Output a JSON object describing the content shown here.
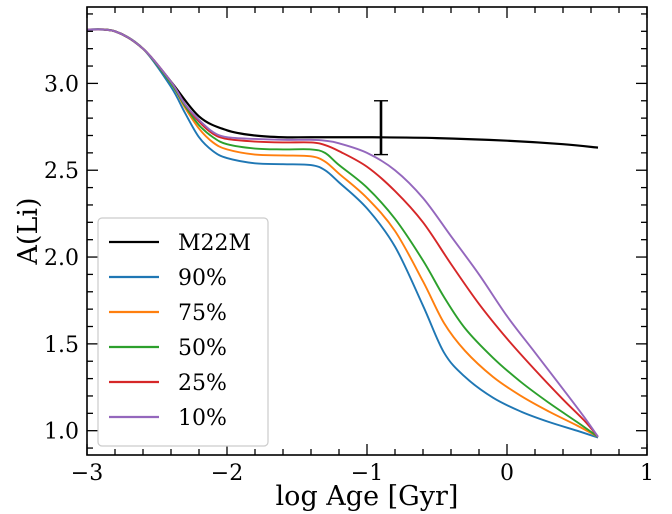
{
  "chart_data": {
    "type": "line",
    "xlabel": "log Age [Gyr]",
    "ylabel": "A(Li)",
    "xlim": [
      -3,
      1
    ],
    "ylim": [
      0.86,
      3.44
    ],
    "xticks": [
      -3,
      -2,
      -1,
      0,
      1
    ],
    "xtick_labels": [
      "−3",
      "−2",
      "−1",
      "0",
      "1"
    ],
    "yticks": [
      1.0,
      1.5,
      2.0,
      2.5,
      3.0
    ],
    "ytick_labels": [
      "1.0",
      "1.5",
      "2.0",
      "2.5",
      "3.0"
    ],
    "legend_position": "lower-left",
    "grid": false,
    "series": [
      {
        "name": "M22M",
        "color": "#000000",
        "points": [
          [
            -3.0,
            3.31
          ],
          [
            -2.8,
            3.3
          ],
          [
            -2.6,
            3.2
          ],
          [
            -2.4,
            3.01
          ],
          [
            -2.2,
            2.81
          ],
          [
            -2.0,
            2.73
          ],
          [
            -1.8,
            2.7
          ],
          [
            -1.6,
            2.69
          ],
          [
            -1.4,
            2.69
          ],
          [
            -1.0,
            2.69
          ],
          [
            -0.5,
            2.685
          ],
          [
            0.0,
            2.67
          ],
          [
            0.4,
            2.65
          ],
          [
            0.65,
            2.63
          ]
        ]
      },
      {
        "name": "90%",
        "color": "#1f77b4",
        "points": [
          [
            -3.0,
            3.31
          ],
          [
            -2.8,
            3.3
          ],
          [
            -2.6,
            3.2
          ],
          [
            -2.4,
            2.98
          ],
          [
            -2.3,
            2.83
          ],
          [
            -2.2,
            2.69
          ],
          [
            -2.1,
            2.61
          ],
          [
            -2.0,
            2.57
          ],
          [
            -1.8,
            2.54
          ],
          [
            -1.6,
            2.535
          ],
          [
            -1.4,
            2.53
          ],
          [
            -1.3,
            2.5
          ],
          [
            -1.2,
            2.43
          ],
          [
            -1.0,
            2.28
          ],
          [
            -0.8,
            2.06
          ],
          [
            -0.6,
            1.72
          ],
          [
            -0.45,
            1.45
          ],
          [
            -0.3,
            1.31
          ],
          [
            -0.1,
            1.19
          ],
          [
            0.1,
            1.11
          ],
          [
            0.3,
            1.05
          ],
          [
            0.5,
            1.0
          ],
          [
            0.65,
            0.96
          ]
        ]
      },
      {
        "name": "75%",
        "color": "#ff7f0e",
        "points": [
          [
            -3.0,
            3.31
          ],
          [
            -2.8,
            3.3
          ],
          [
            -2.6,
            3.2
          ],
          [
            -2.4,
            3.0
          ],
          [
            -2.3,
            2.86
          ],
          [
            -2.2,
            2.74
          ],
          [
            -2.1,
            2.66
          ],
          [
            -2.0,
            2.62
          ],
          [
            -1.8,
            2.59
          ],
          [
            -1.6,
            2.585
          ],
          [
            -1.4,
            2.58
          ],
          [
            -1.3,
            2.55
          ],
          [
            -1.2,
            2.48
          ],
          [
            -1.0,
            2.34
          ],
          [
            -0.8,
            2.15
          ],
          [
            -0.6,
            1.86
          ],
          [
            -0.45,
            1.62
          ],
          [
            -0.3,
            1.46
          ],
          [
            -0.1,
            1.31
          ],
          [
            0.1,
            1.2
          ],
          [
            0.3,
            1.11
          ],
          [
            0.5,
            1.03
          ],
          [
            0.65,
            0.965
          ]
        ]
      },
      {
        "name": "50%",
        "color": "#2ca02c",
        "points": [
          [
            -3.0,
            3.31
          ],
          [
            -2.8,
            3.3
          ],
          [
            -2.6,
            3.2
          ],
          [
            -2.4,
            3.0
          ],
          [
            -2.3,
            2.87
          ],
          [
            -2.2,
            2.76
          ],
          [
            -2.1,
            2.69
          ],
          [
            -2.0,
            2.65
          ],
          [
            -1.8,
            2.625
          ],
          [
            -1.6,
            2.62
          ],
          [
            -1.4,
            2.62
          ],
          [
            -1.3,
            2.6
          ],
          [
            -1.2,
            2.53
          ],
          [
            -1.0,
            2.4
          ],
          [
            -0.8,
            2.22
          ],
          [
            -0.6,
            1.98
          ],
          [
            -0.45,
            1.77
          ],
          [
            -0.3,
            1.59
          ],
          [
            -0.1,
            1.42
          ],
          [
            0.1,
            1.28
          ],
          [
            0.3,
            1.16
          ],
          [
            0.5,
            1.05
          ],
          [
            0.65,
            0.965
          ]
        ]
      },
      {
        "name": "25%",
        "color": "#d62728",
        "points": [
          [
            -3.0,
            3.31
          ],
          [
            -2.8,
            3.3
          ],
          [
            -2.6,
            3.2
          ],
          [
            -2.4,
            3.01
          ],
          [
            -2.3,
            2.88
          ],
          [
            -2.2,
            2.78
          ],
          [
            -2.1,
            2.71
          ],
          [
            -2.0,
            2.68
          ],
          [
            -1.8,
            2.665
          ],
          [
            -1.6,
            2.66
          ],
          [
            -1.4,
            2.66
          ],
          [
            -1.3,
            2.645
          ],
          [
            -1.2,
            2.61
          ],
          [
            -1.0,
            2.52
          ],
          [
            -0.8,
            2.38
          ],
          [
            -0.6,
            2.2
          ],
          [
            -0.4,
            1.96
          ],
          [
            -0.2,
            1.73
          ],
          [
            0.0,
            1.53
          ],
          [
            0.2,
            1.35
          ],
          [
            0.4,
            1.18
          ],
          [
            0.55,
            1.06
          ],
          [
            0.65,
            0.965
          ]
        ]
      },
      {
        "name": "10%",
        "color": "#9467bd",
        "points": [
          [
            -3.0,
            3.31
          ],
          [
            -2.8,
            3.3
          ],
          [
            -2.6,
            3.2
          ],
          [
            -2.4,
            3.01
          ],
          [
            -2.3,
            2.88
          ],
          [
            -2.2,
            2.79
          ],
          [
            -2.1,
            2.72
          ],
          [
            -2.0,
            2.69
          ],
          [
            -1.8,
            2.68
          ],
          [
            -1.6,
            2.675
          ],
          [
            -1.4,
            2.675
          ],
          [
            -1.3,
            2.67
          ],
          [
            -1.2,
            2.655
          ],
          [
            -1.0,
            2.6
          ],
          [
            -0.8,
            2.5
          ],
          [
            -0.6,
            2.34
          ],
          [
            -0.4,
            2.12
          ],
          [
            -0.2,
            1.9
          ],
          [
            0.0,
            1.66
          ],
          [
            0.2,
            1.45
          ],
          [
            0.4,
            1.24
          ],
          [
            0.55,
            1.08
          ],
          [
            0.65,
            0.965
          ]
        ]
      }
    ],
    "error_bar": {
      "x": -0.9,
      "y": 2.74,
      "ylow": 2.59,
      "yhigh": 2.9,
      "color": "#000000"
    }
  }
}
